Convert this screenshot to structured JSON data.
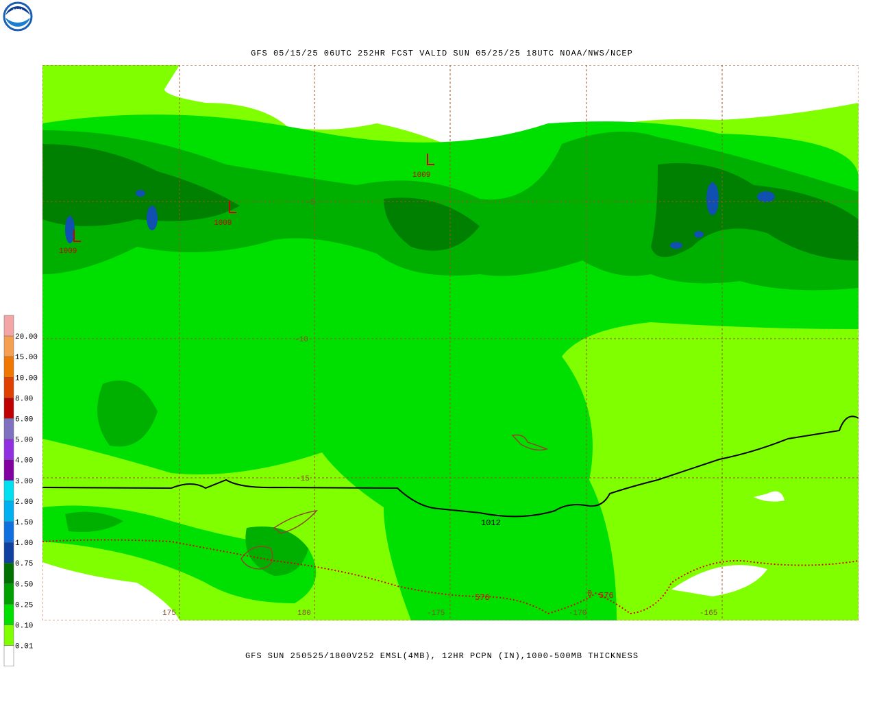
{
  "logo": "NOAA",
  "title": "GFS 05/15/25 06UTC 252HR FCST VALID SUN 05/25/25 18UTC NOAA/NWS/NCEP",
  "footer": "GFS SUN 250525/1800V252 EMSL(4MB), 12HR PCPN (IN),1000-500MB THICKNESS",
  "legend": {
    "labels": [
      "20.00",
      "15.00",
      "10.00",
      "8.00",
      "6.00",
      "5.00",
      "4.00",
      "3.00",
      "2.00",
      "1.50",
      "1.00",
      "0.75",
      "0.50",
      "0.25",
      "0.10",
      "0.01"
    ],
    "colors": [
      "#f4a6a6",
      "#f5a050",
      "#f07800",
      "#e04000",
      "#c00000",
      "#8070c0",
      "#9030e0",
      "#8000a0",
      "#00e0f0",
      "#00b0f0",
      "#1070e0",
      "#1040a0",
      "#007000",
      "#00a000",
      "#00e000",
      "#7fff00",
      "#ffffff"
    ]
  },
  "map": {
    "latitude_labels": [
      "-5",
      "-10",
      "-15"
    ],
    "longitude_labels": [
      "175",
      "180",
      "-175",
      "-170",
      "-165"
    ],
    "lows": [
      {
        "symbol": "L",
        "label": "1009"
      },
      {
        "symbol": "L",
        "label": "1009"
      },
      {
        "symbol": "L",
        "label": "1009"
      }
    ],
    "isobar_label": "1012",
    "thickness_labels": [
      "576",
      "576",
      "0"
    ]
  }
}
